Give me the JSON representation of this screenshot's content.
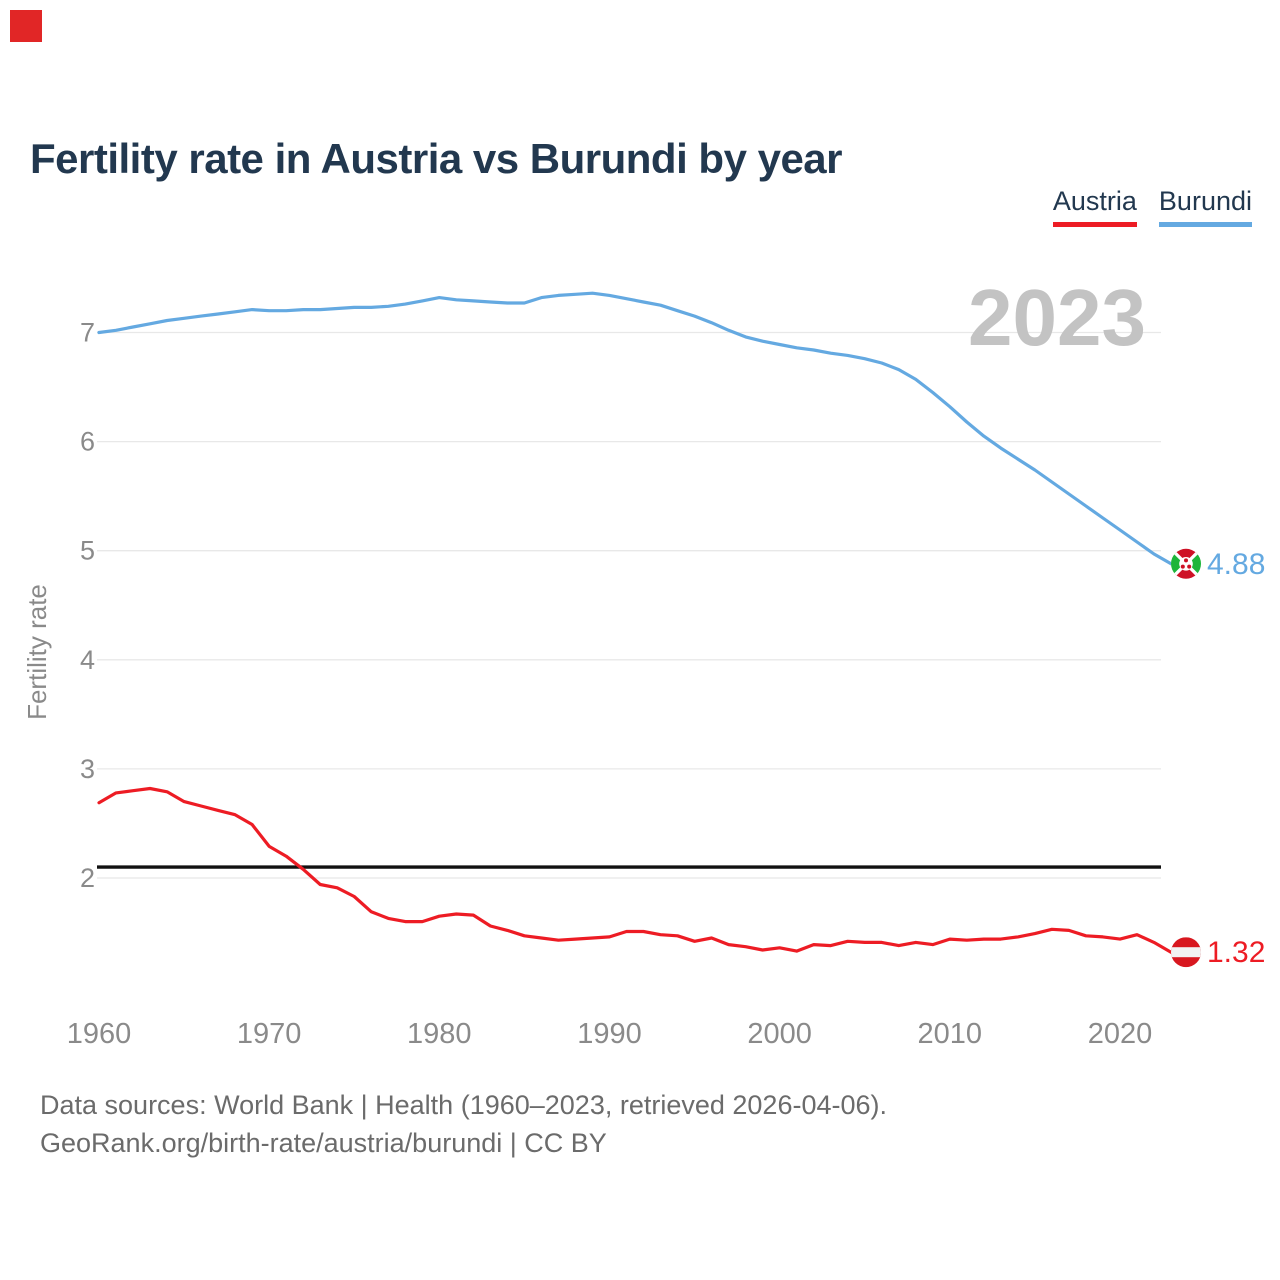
{
  "marker": {
    "color": "#e12626"
  },
  "header": {
    "title": "Fertility rate in Austria vs Burundi by year"
  },
  "legend": [
    {
      "label": "Austria",
      "color": "#ed1c24"
    },
    {
      "label": "Burundi",
      "color": "#64a9e1"
    }
  ],
  "footer": {
    "line1": "Data sources: World Bank | Health (1960–2023, retrieved 2026-04-06).",
    "line2": "GeoRank.org/birth-rate/austria/burundi | CC BY"
  },
  "chart_data": {
    "type": "line",
    "title": "Fertility rate in Austria vs Burundi by year",
    "xlabel": "",
    "ylabel": "Fertility rate",
    "watermark": "2023",
    "grid": "horizontal",
    "legend_position": "top-right",
    "xlim": [
      1960,
      2023
    ],
    "ylim": [
      1.1,
      7.6
    ],
    "x_ticks": [
      1960,
      1970,
      1980,
      1990,
      2000,
      2010,
      2020
    ],
    "y_ticks": [
      2,
      3,
      4,
      5,
      6,
      7
    ],
    "reference_line": {
      "value": 2.1,
      "color": "#111111"
    },
    "x": [
      1960,
      1961,
      1962,
      1963,
      1964,
      1965,
      1966,
      1967,
      1968,
      1969,
      1970,
      1971,
      1972,
      1973,
      1974,
      1975,
      1976,
      1977,
      1978,
      1979,
      1980,
      1981,
      1982,
      1983,
      1984,
      1985,
      1986,
      1987,
      1988,
      1989,
      1990,
      1991,
      1992,
      1993,
      1994,
      1995,
      1996,
      1997,
      1998,
      1999,
      2000,
      2001,
      2002,
      2003,
      2004,
      2005,
      2006,
      2007,
      2008,
      2009,
      2010,
      2011,
      2012,
      2013,
      2014,
      2015,
      2016,
      2017,
      2018,
      2019,
      2020,
      2021,
      2022,
      2023
    ],
    "series": [
      {
        "name": "Burundi",
        "color": "#64a9e1",
        "end_label": "4.88",
        "flag": "burundi",
        "values": [
          7.0,
          7.02,
          7.05,
          7.08,
          7.11,
          7.13,
          7.15,
          7.17,
          7.19,
          7.21,
          7.2,
          7.2,
          7.21,
          7.21,
          7.22,
          7.23,
          7.23,
          7.24,
          7.26,
          7.29,
          7.32,
          7.3,
          7.29,
          7.28,
          7.27,
          7.27,
          7.32,
          7.34,
          7.35,
          7.36,
          7.34,
          7.31,
          7.28,
          7.25,
          7.2,
          7.15,
          7.09,
          7.02,
          6.96,
          6.92,
          6.89,
          6.86,
          6.84,
          6.81,
          6.79,
          6.76,
          6.72,
          6.66,
          6.57,
          6.45,
          6.32,
          6.18,
          6.05,
          5.94,
          5.84,
          5.74,
          5.63,
          5.52,
          5.41,
          5.3,
          5.19,
          5.08,
          4.97,
          4.88
        ]
      },
      {
        "name": "Austria",
        "color": "#ed1c24",
        "end_label": "1.32",
        "flag": "austria",
        "values": [
          2.69,
          2.78,
          2.8,
          2.82,
          2.79,
          2.7,
          2.66,
          2.62,
          2.58,
          2.49,
          2.29,
          2.2,
          2.08,
          1.94,
          1.91,
          1.83,
          1.69,
          1.63,
          1.6,
          1.6,
          1.65,
          1.67,
          1.66,
          1.56,
          1.52,
          1.47,
          1.45,
          1.43,
          1.44,
          1.45,
          1.46,
          1.51,
          1.51,
          1.48,
          1.47,
          1.42,
          1.45,
          1.39,
          1.37,
          1.34,
          1.36,
          1.33,
          1.39,
          1.38,
          1.42,
          1.41,
          1.41,
          1.38,
          1.41,
          1.39,
          1.44,
          1.43,
          1.44,
          1.44,
          1.46,
          1.49,
          1.53,
          1.52,
          1.47,
          1.46,
          1.44,
          1.48,
          1.41,
          1.32
        ]
      }
    ]
  }
}
